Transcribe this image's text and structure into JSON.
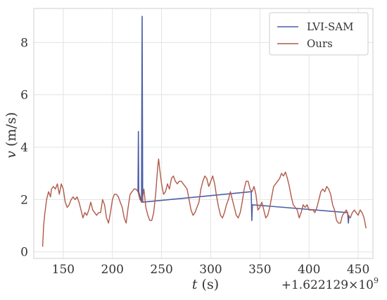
{
  "chart_data": {
    "type": "line",
    "xlabel_var": "t",
    "xlabel_unit": " (s)",
    "ylabel_var": "v",
    "ylabel_unit": " (m/s)",
    "x_offset_label": "+1.622129×10",
    "x_offset_exponent": "9",
    "xlim": [
      120,
      465
    ],
    "ylim": [
      -0.25,
      9.3
    ],
    "x_ticks": [
      150,
      200,
      250,
      300,
      350,
      400,
      450
    ],
    "y_ticks": [
      0,
      2,
      4,
      6,
      8
    ],
    "grid": true,
    "legend_position": "top-right",
    "series": [
      {
        "name": "LVI-SAM",
        "color": "#4c5fa8",
        "points": [
          [
            226.0,
            2.3
          ],
          [
            226.4,
            4.6
          ],
          [
            226.8,
            2.3
          ],
          [
            229.6,
            1.9
          ],
          [
            230.2,
            9.0
          ],
          [
            230.8,
            1.9
          ],
          [
            341.2,
            2.3
          ],
          [
            341.8,
            1.2
          ],
          [
            342.4,
            1.8
          ],
          [
            439.3,
            1.5
          ],
          [
            440.0,
            1.1
          ],
          [
            440.6,
            1.4
          ]
        ]
      },
      {
        "name": "Ours",
        "color": "#b05a4a",
        "points": [
          [
            129,
            0.2
          ],
          [
            130,
            1.0
          ],
          [
            131,
            1.4
          ],
          [
            133,
            2.0
          ],
          [
            135,
            2.3
          ],
          [
            137,
            2.1
          ],
          [
            138,
            2.4
          ],
          [
            140,
            2.5
          ],
          [
            142,
            2.4
          ],
          [
            144,
            2.6
          ],
          [
            146,
            2.2
          ],
          [
            148,
            2.6
          ],
          [
            150,
            2.4
          ],
          [
            152,
            1.9
          ],
          [
            154,
            1.7
          ],
          [
            156,
            1.8
          ],
          [
            158,
            2.0
          ],
          [
            160,
            2.1
          ],
          [
            162,
            2.0
          ],
          [
            164,
            2.1
          ],
          [
            166,
            1.9
          ],
          [
            168,
            1.6
          ],
          [
            170,
            1.3
          ],
          [
            172,
            1.5
          ],
          [
            174,
            1.4
          ],
          [
            176,
            1.6
          ],
          [
            178,
            1.9
          ],
          [
            180,
            1.6
          ],
          [
            182,
            1.5
          ],
          [
            184,
            1.4
          ],
          [
            186,
            1.5
          ],
          [
            188,
            1.5
          ],
          [
            190,
            2.0
          ],
          [
            192,
            1.8
          ],
          [
            194,
            1.3
          ],
          [
            196,
            1.1
          ],
          [
            198,
            1.5
          ],
          [
            200,
            2.0
          ],
          [
            202,
            2.2
          ],
          [
            204,
            2.2
          ],
          [
            206,
            2.1
          ],
          [
            208,
            1.9
          ],
          [
            210,
            1.7
          ],
          [
            212,
            1.3
          ],
          [
            214,
            1.1
          ],
          [
            216,
            1.7
          ],
          [
            218,
            2.2
          ],
          [
            220,
            2.3
          ],
          [
            222,
            2.4
          ],
          [
            224,
            2.4
          ],
          [
            226,
            2.3
          ],
          [
            228,
            2.0
          ],
          [
            230,
            1.9
          ],
          [
            232,
            2.4
          ],
          [
            234,
            1.7
          ],
          [
            236,
            1.4
          ],
          [
            238,
            1.2
          ],
          [
            240,
            1.2
          ],
          [
            242,
            1.5
          ],
          [
            244,
            2.2
          ],
          [
            246,
            3.2
          ],
          [
            247,
            3.55
          ],
          [
            248,
            3.2
          ],
          [
            250,
            2.6
          ],
          [
            252,
            2.2
          ],
          [
            254,
            2.3
          ],
          [
            256,
            2.6
          ],
          [
            258,
            2.4
          ],
          [
            260,
            2.8
          ],
          [
            262,
            2.9
          ],
          [
            264,
            2.7
          ],
          [
            266,
            2.6
          ],
          [
            268,
            2.7
          ],
          [
            270,
            2.7
          ],
          [
            272,
            2.6
          ],
          [
            274,
            2.5
          ],
          [
            276,
            2.4
          ],
          [
            278,
            2.0
          ],
          [
            280,
            1.6
          ],
          [
            282,
            1.4
          ],
          [
            284,
            1.5
          ],
          [
            286,
            1.7
          ],
          [
            288,
            1.9
          ],
          [
            290,
            2.4
          ],
          [
            292,
            2.7
          ],
          [
            294,
            2.9
          ],
          [
            296,
            2.8
          ],
          [
            298,
            2.5
          ],
          [
            300,
            2.7
          ],
          [
            302,
            2.9
          ],
          [
            304,
            2.6
          ],
          [
            306,
            2.1
          ],
          [
            308,
            1.7
          ],
          [
            310,
            1.4
          ],
          [
            312,
            1.3
          ],
          [
            314,
            1.5
          ],
          [
            316,
            1.8
          ],
          [
            318,
            2.0
          ],
          [
            320,
            2.3
          ],
          [
            322,
            2.0
          ],
          [
            324,
            1.7
          ],
          [
            326,
            1.4
          ],
          [
            328,
            1.3
          ],
          [
            330,
            1.5
          ],
          [
            332,
            1.9
          ],
          [
            334,
            2.4
          ],
          [
            336,
            2.7
          ],
          [
            338,
            2.7
          ],
          [
            340,
            2.4
          ],
          [
            342,
            2.3
          ],
          [
            344,
            2.5
          ],
          [
            346,
            2.2
          ],
          [
            348,
            1.6
          ],
          [
            350,
            1.7
          ],
          [
            352,
            1.9
          ],
          [
            354,
            1.6
          ],
          [
            356,
            1.3
          ],
          [
            358,
            1.4
          ],
          [
            360,
            1.7
          ],
          [
            362,
            2.1
          ],
          [
            364,
            2.5
          ],
          [
            366,
            2.6
          ],
          [
            368,
            2.7
          ],
          [
            370,
            2.8
          ],
          [
            372,
            3.0
          ],
          [
            374,
            2.9
          ],
          [
            376,
            3.05
          ],
          [
            378,
            2.8
          ],
          [
            380,
            2.5
          ],
          [
            382,
            2.1
          ],
          [
            384,
            1.8
          ],
          [
            386,
            1.7
          ],
          [
            388,
            1.6
          ],
          [
            390,
            1.3
          ],
          [
            392,
            1.5
          ],
          [
            394,
            1.8
          ],
          [
            396,
            1.7
          ],
          [
            398,
            1.8
          ],
          [
            400,
            1.6
          ],
          [
            402,
            1.6
          ],
          [
            404,
            1.6
          ],
          [
            406,
            1.5
          ],
          [
            408,
            1.7
          ],
          [
            410,
            2.0
          ],
          [
            412,
            2.3
          ],
          [
            414,
            2.4
          ],
          [
            416,
            2.3
          ],
          [
            418,
            2.5
          ],
          [
            420,
            2.4
          ],
          [
            422,
            2.2
          ],
          [
            424,
            1.8
          ],
          [
            426,
            1.6
          ],
          [
            428,
            1.2
          ],
          [
            430,
            1.1
          ],
          [
            432,
            1.1
          ],
          [
            434,
            1.4
          ],
          [
            436,
            1.5
          ],
          [
            438,
            1.6
          ],
          [
            440,
            1.4
          ],
          [
            442,
            1.3
          ],
          [
            444,
            1.5
          ],
          [
            446,
            1.6
          ],
          [
            448,
            1.5
          ],
          [
            450,
            1.4
          ],
          [
            452,
            1.6
          ],
          [
            454,
            1.5
          ],
          [
            456,
            1.3
          ],
          [
            458,
            0.9
          ]
        ]
      }
    ]
  }
}
